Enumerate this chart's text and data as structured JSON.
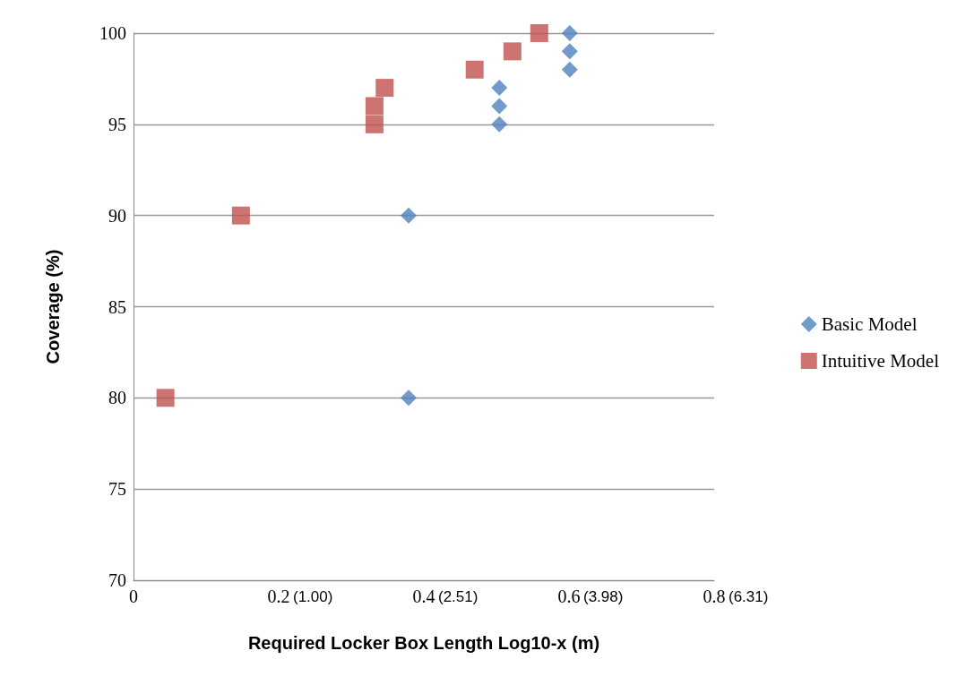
{
  "chart_data": {
    "type": "scatter",
    "xlabel": "Required Locker Box Length Log10-x (m)",
    "ylabel": "Coverage (%)",
    "xlim": [
      0,
      0.8
    ],
    "xticks": [
      0,
      0.2,
      0.4,
      0.6,
      0.8
    ],
    "annotations": [
      "(1.00)",
      "(2.51)",
      "(3.98)",
      "(6.31)"
    ],
    "ylim": [
      70,
      100
    ],
    "yticks": [
      70,
      75,
      80,
      85,
      90,
      95,
      100
    ],
    "grid": "y",
    "legend": "right",
    "series": [
      {
        "name": "Basic Model",
        "color": "#4f81bd",
        "marker": "diamond",
        "x": [
          0.379,
          0.379,
          0.504,
          0.504,
          0.504,
          0.601,
          0.601,
          0.601
        ],
        "values": [
          80,
          90,
          95,
          96,
          97,
          98,
          99,
          100
        ]
      },
      {
        "name": "Intuitive Model",
        "color": "#c0504d",
        "marker": "square",
        "x": [
          0.044,
          0.148,
          0.332,
          0.332,
          0.346,
          0.47,
          0.522,
          0.559
        ],
        "values": [
          80,
          90,
          95,
          96,
          97,
          98,
          99,
          100
        ]
      }
    ]
  }
}
